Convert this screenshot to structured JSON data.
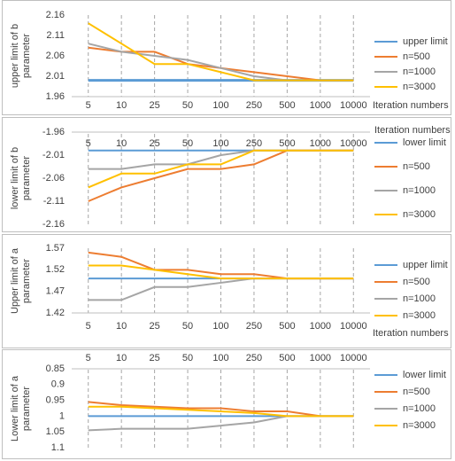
{
  "chart_data": [
    {
      "type": "line",
      "y_title": "upper limit of b parameter",
      "x_title": "Iteration numbers",
      "categories": [
        "5",
        "10",
        "25",
        "50",
        "100",
        "250",
        "500",
        "1000",
        "10000"
      ],
      "ylim": [
        1.96,
        2.16
      ],
      "yticks": [
        1.96,
        2.01,
        2.06,
        2.11,
        2.16
      ],
      "grid": false,
      "y_reversed": false,
      "x_axis_position": "bottom",
      "series": [
        {
          "name": "upper limit",
          "color": "#5b9bd5",
          "values": [
            2.0,
            2.0,
            2.0,
            2.0,
            2.0,
            2.0,
            2.0,
            2.0,
            2.0
          ]
        },
        {
          "name": "n=500",
          "color": "#ed7d31",
          "values": [
            2.08,
            2.07,
            2.07,
            2.04,
            2.03,
            2.02,
            2.01,
            2.0,
            2.0
          ]
        },
        {
          "name": "n=1000",
          "color": "#a5a5a5",
          "values": [
            2.09,
            2.07,
            2.06,
            2.05,
            2.03,
            2.01,
            2.0,
            2.0,
            2.0
          ]
        },
        {
          "name": "n=3000",
          "color": "#ffc000",
          "values": [
            2.14,
            2.09,
            2.04,
            2.04,
            2.02,
            2.0,
            2.0,
            2.0,
            2.0
          ]
        }
      ]
    },
    {
      "type": "line",
      "y_title": "lower limit of b parameter",
      "x_title": "Iteration numbers",
      "categories": [
        "5",
        "10",
        "25",
        "50",
        "100",
        "250",
        "500",
        "1000",
        "10000"
      ],
      "ylim": [
        -2.16,
        -1.96
      ],
      "yticks": [
        -1.96,
        -2.01,
        -2.06,
        -2.11,
        -2.16
      ],
      "grid": false,
      "y_reversed": false,
      "x_axis_position": "top",
      "series": [
        {
          "name": "lower limit",
          "color": "#5b9bd5",
          "values": [
            -2.0,
            -2.0,
            -2.0,
            -2.0,
            -2.0,
            -2.0,
            -2.0,
            -2.0,
            -2.0
          ]
        },
        {
          "name": "n=500",
          "color": "#ed7d31",
          "values": [
            -2.11,
            -2.08,
            -2.06,
            -2.04,
            -2.04,
            -2.03,
            -2.0,
            -2.0,
            -2.0
          ]
        },
        {
          "name": "n=1000",
          "color": "#a5a5a5",
          "values": [
            -2.04,
            -2.04,
            -2.03,
            -2.03,
            -2.01,
            -2.0,
            -2.0,
            -2.0,
            -2.0
          ]
        },
        {
          "name": "n=3000",
          "color": "#ffc000",
          "values": [
            -2.08,
            -2.05,
            -2.05,
            -2.03,
            -2.03,
            -2.0,
            -2.0,
            -2.0,
            -2.0
          ]
        }
      ]
    },
    {
      "type": "line",
      "y_title": "Upper limit of a parameter",
      "x_title": "Iteration numbers",
      "categories": [
        "5",
        "10",
        "25",
        "50",
        "100",
        "250",
        "500",
        "1000",
        "10000"
      ],
      "ylim": [
        1.42,
        1.57
      ],
      "yticks": [
        1.42,
        1.47,
        1.52,
        1.57
      ],
      "grid": false,
      "y_reversed": false,
      "x_axis_position": "bottom",
      "series": [
        {
          "name": "upper limit",
          "color": "#5b9bd5",
          "values": [
            1.5,
            1.5,
            1.5,
            1.5,
            1.5,
            1.5,
            1.5,
            1.5,
            1.5
          ]
        },
        {
          "name": "n=500",
          "color": "#ed7d31",
          "values": [
            1.56,
            1.55,
            1.52,
            1.52,
            1.51,
            1.51,
            1.5,
            1.5,
            1.5
          ]
        },
        {
          "name": "n=1000",
          "color": "#a5a5a5",
          "values": [
            1.45,
            1.45,
            1.48,
            1.48,
            1.49,
            1.5,
            1.5,
            1.5,
            1.5
          ]
        },
        {
          "name": "n=3000",
          "color": "#ffc000",
          "values": [
            1.53,
            1.53,
            1.52,
            1.51,
            1.5,
            1.5,
            1.5,
            1.5,
            1.5
          ]
        }
      ]
    },
    {
      "type": "line",
      "y_title": "Lower limit of a parameter",
      "categories": [
        "5",
        "10",
        "25",
        "50",
        "100",
        "250",
        "500",
        "1000",
        "10000"
      ],
      "ylim": [
        0.85,
        1.1
      ],
      "yticks": [
        0.85,
        0.9,
        0.95,
        1,
        1.05,
        1.1
      ],
      "grid": false,
      "y_reversed": true,
      "x_axis_position": "top",
      "series": [
        {
          "name": "lower limit",
          "color": "#5b9bd5",
          "values": [
            1,
            1,
            1,
            1,
            1,
            1,
            1,
            1,
            1
          ]
        },
        {
          "name": "n=500",
          "color": "#ed7d31",
          "values": [
            0.955,
            0.965,
            0.97,
            0.975,
            0.975,
            0.985,
            0.985,
            1,
            1
          ]
        },
        {
          "name": "n=1000",
          "color": "#a5a5a5",
          "values": [
            1.045,
            1.04,
            1.04,
            1.04,
            1.03,
            1.02,
            1,
            1,
            1
          ]
        },
        {
          "name": "n=3000",
          "color": "#ffc000",
          "values": [
            0.97,
            0.97,
            0.975,
            0.98,
            0.985,
            0.99,
            1,
            1,
            1
          ]
        }
      ]
    }
  ]
}
